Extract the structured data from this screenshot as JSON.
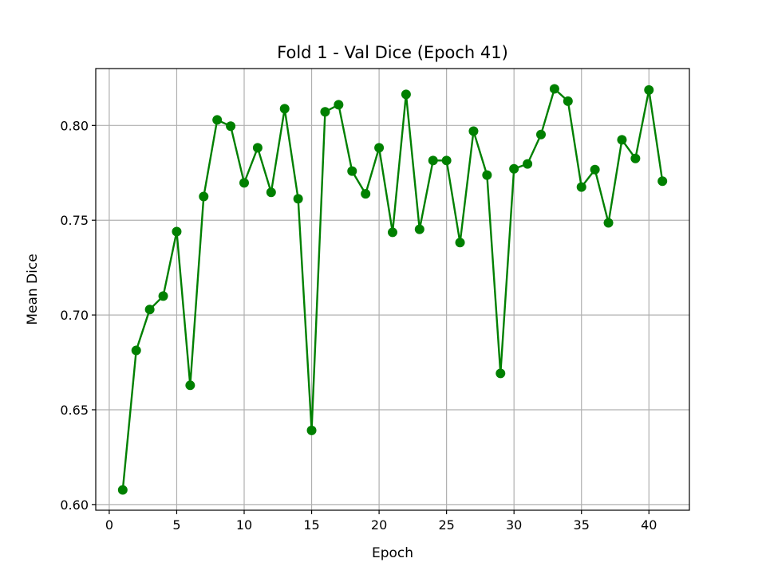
{
  "chart_data": {
    "type": "line",
    "title": "Fold 1 - Val Dice (Epoch 41)",
    "xlabel": "Epoch",
    "ylabel": "Mean Dice",
    "xlim": [
      -1.0,
      43.0
    ],
    "ylim": [
      0.597,
      0.83
    ],
    "xticks": [
      0,
      5,
      10,
      15,
      20,
      25,
      30,
      35,
      40
    ],
    "xtick_labels": [
      "0",
      "5",
      "10",
      "15",
      "20",
      "25",
      "30",
      "35",
      "40"
    ],
    "yticks": [
      0.6,
      0.65,
      0.7,
      0.75,
      0.8
    ],
    "ytick_labels": [
      "0.60",
      "0.65",
      "0.70",
      "0.75",
      "0.80"
    ],
    "grid": true,
    "color": "#008000",
    "marker": "circle",
    "series": [
      {
        "x": [
          1,
          2,
          3,
          4,
          5,
          6,
          7,
          8,
          9,
          10,
          11,
          12,
          13,
          14,
          15,
          16,
          17,
          18,
          19,
          20,
          21,
          22,
          23,
          24,
          25,
          26,
          27,
          28,
          29,
          30,
          31,
          32,
          33,
          34,
          35,
          36,
          37,
          38,
          39,
          40,
          41
        ],
        "values": [
          0.6077,
          0.6813,
          0.7029,
          0.71,
          0.744,
          0.6629,
          0.7625,
          0.8029,
          0.7996,
          0.7697,
          0.7882,
          0.7647,
          0.8088,
          0.7613,
          0.6391,
          0.8072,
          0.8109,
          0.7759,
          0.7639,
          0.7882,
          0.7436,
          0.8164,
          0.7452,
          0.7815,
          0.7815,
          0.7382,
          0.797,
          0.7738,
          0.6692,
          0.7771,
          0.7797,
          0.7952,
          0.8193,
          0.8128,
          0.7675,
          0.7767,
          0.7486,
          0.7924,
          0.7826,
          0.8187,
          0.7706
        ]
      }
    ]
  }
}
